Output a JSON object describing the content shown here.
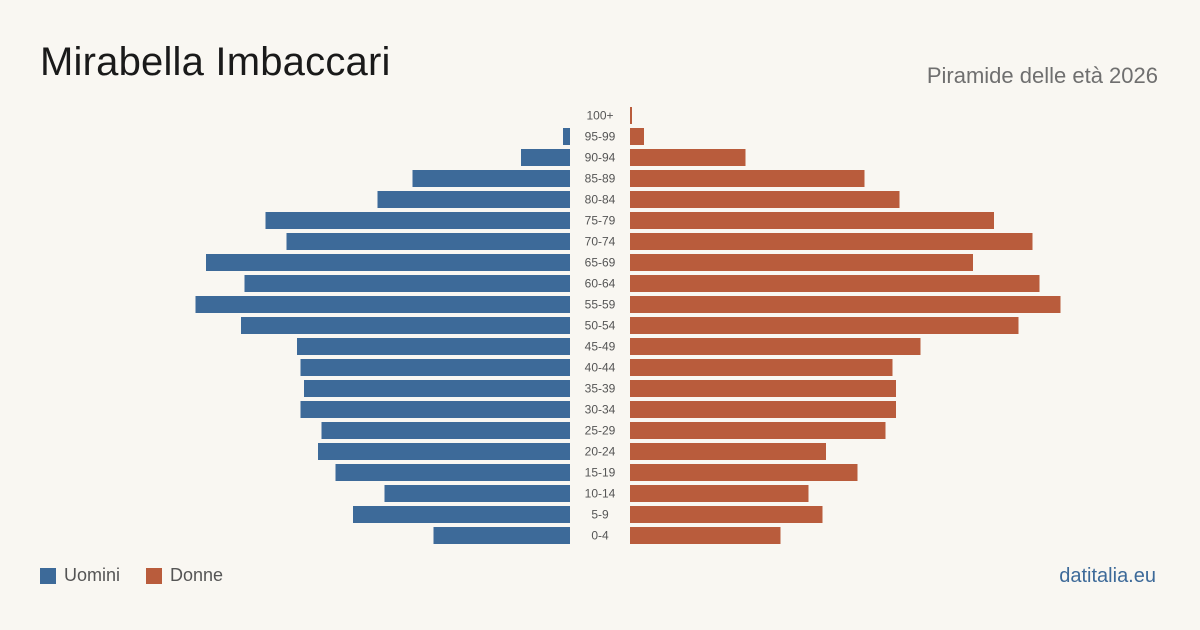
{
  "header": {
    "title": "Mirabella Imbaccari",
    "subtitle": "Piramide delle età 2026"
  },
  "legend": {
    "men_label": "Uomini",
    "women_label": "Donne"
  },
  "brand": "datitalia.eu",
  "colors": {
    "men": "#3d6a99",
    "women": "#b95c3c",
    "background": "#f9f7f2",
    "age_label": "#555555"
  },
  "chart_data": {
    "type": "bar",
    "orientation": "horizontal-pyramid",
    "categories": [
      "100+",
      "95-99",
      "90-94",
      "85-89",
      "80-84",
      "75-79",
      "70-74",
      "65-69",
      "60-64",
      "55-59",
      "50-54",
      "45-49",
      "40-44",
      "35-39",
      "30-34",
      "25-29",
      "20-24",
      "15-19",
      "10-14",
      "5-9",
      "0-4"
    ],
    "series": [
      {
        "name": "Uomini",
        "values": [
          0,
          2,
          14,
          45,
          55,
          87,
          81,
          104,
          93,
          107,
          94,
          78,
          77,
          76,
          77,
          71,
          72,
          67,
          53,
          62,
          39
        ]
      },
      {
        "name": "Donne",
        "values": [
          0.5,
          4,
          33,
          67,
          77,
          104,
          115,
          98,
          117,
          123,
          111,
          83,
          75,
          76,
          76,
          73,
          56,
          65,
          51,
          55,
          43
        ]
      }
    ],
    "xlim": [
      0,
      125
    ],
    "grid": false,
    "legend_position": "bottom-left"
  }
}
